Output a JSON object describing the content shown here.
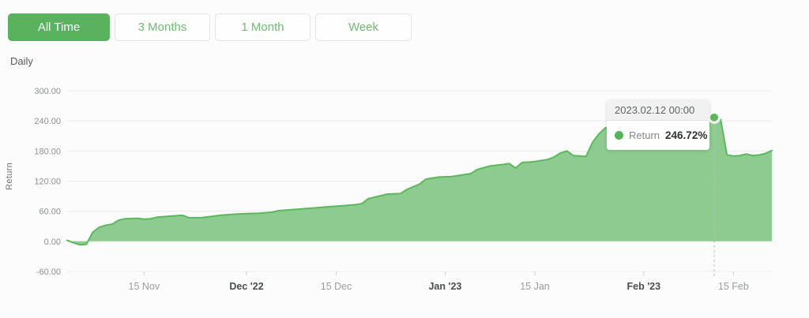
{
  "toolbar": {
    "buttons": [
      {
        "label": "All Time",
        "active": true
      },
      {
        "label": "3 Months",
        "active": false
      },
      {
        "label": "1 Month",
        "active": false
      },
      {
        "label": "Week",
        "active": false
      }
    ]
  },
  "granularity_label": "Daily",
  "tooltip": {
    "header": "2023.02.12 00:00",
    "series": "Return",
    "value": "246.72%",
    "dot_color": "#57b45b"
  },
  "chart_data": {
    "type": "area",
    "title": "",
    "xlabel": "",
    "ylabel": "Return",
    "ylim": [
      -60,
      300
    ],
    "x_range": [
      "2022-11-03",
      "2023-02-21"
    ],
    "grid": true,
    "grid_color": "#ececec",
    "legend_position": "none",
    "yticks": [
      {
        "value": 300,
        "label": "300.00"
      },
      {
        "value": 240,
        "label": "240.00"
      },
      {
        "value": 180,
        "label": "180.00"
      },
      {
        "value": 120,
        "label": "120.00"
      },
      {
        "value": 60,
        "label": "60.00"
      },
      {
        "value": 0,
        "label": "0.00"
      },
      {
        "value": -60,
        "label": "-60.00"
      }
    ],
    "xticks": [
      {
        "date": "2022-11-15",
        "label": "15 Nov",
        "bold": false
      },
      {
        "date": "2022-12-01",
        "label": "Dec '22",
        "bold": true
      },
      {
        "date": "2022-12-15",
        "label": "15 Dec",
        "bold": false
      },
      {
        "date": "2023-01-01",
        "label": "Jan '23",
        "bold": true
      },
      {
        "date": "2023-01-15",
        "label": "15 Jan",
        "bold": false
      },
      {
        "date": "2023-02-01",
        "label": "Feb '23",
        "bold": true
      },
      {
        "date": "2023-02-15",
        "label": "15 Feb",
        "bold": false
      }
    ],
    "marker": {
      "date": "2023-02-12",
      "value": 246.72,
      "series": "Return"
    },
    "series": [
      {
        "name": "Return",
        "color": "#5cb85c",
        "fill": "#8ecb90",
        "points": [
          [
            "2022-11-03",
            2
          ],
          [
            "2022-11-04",
            -3
          ],
          [
            "2022-11-05",
            -7
          ],
          [
            "2022-11-06",
            -6
          ],
          [
            "2022-11-07",
            18
          ],
          [
            "2022-11-08",
            28
          ],
          [
            "2022-11-09",
            32
          ],
          [
            "2022-11-10",
            34
          ],
          [
            "2022-11-11",
            42
          ],
          [
            "2022-11-12",
            45
          ],
          [
            "2022-11-14",
            46
          ],
          [
            "2022-11-15",
            44
          ],
          [
            "2022-11-16",
            45
          ],
          [
            "2022-11-17",
            48
          ],
          [
            "2022-11-19",
            50
          ],
          [
            "2022-11-21",
            52
          ],
          [
            "2022-11-22",
            47
          ],
          [
            "2022-11-24",
            47
          ],
          [
            "2022-11-25",
            49
          ],
          [
            "2022-11-27",
            52
          ],
          [
            "2022-11-29",
            54
          ],
          [
            "2022-12-01",
            55
          ],
          [
            "2022-12-03",
            56
          ],
          [
            "2022-12-05",
            58
          ],
          [
            "2022-12-06",
            61
          ],
          [
            "2022-12-08",
            63
          ],
          [
            "2022-12-10",
            65
          ],
          [
            "2022-12-12",
            67
          ],
          [
            "2022-12-14",
            69
          ],
          [
            "2022-12-16",
            71
          ],
          [
            "2022-12-18",
            73
          ],
          [
            "2022-12-19",
            75
          ],
          [
            "2022-12-20",
            85
          ],
          [
            "2022-12-22",
            91
          ],
          [
            "2022-12-23",
            94
          ],
          [
            "2022-12-25",
            95
          ],
          [
            "2022-12-26",
            103
          ],
          [
            "2022-12-28",
            114
          ],
          [
            "2022-12-29",
            124
          ],
          [
            "2022-12-31",
            128
          ],
          [
            "2023-01-02",
            129
          ],
          [
            "2023-01-03",
            131
          ],
          [
            "2023-01-05",
            135
          ],
          [
            "2023-01-06",
            143
          ],
          [
            "2023-01-08",
            150
          ],
          [
            "2023-01-10",
            153
          ],
          [
            "2023-01-11",
            155
          ],
          [
            "2023-01-12",
            146
          ],
          [
            "2023-01-13",
            157
          ],
          [
            "2023-01-15",
            159
          ],
          [
            "2023-01-17",
            163
          ],
          [
            "2023-01-18",
            168
          ],
          [
            "2023-01-19",
            176
          ],
          [
            "2023-01-20",
            180
          ],
          [
            "2023-01-21",
            171
          ],
          [
            "2023-01-23",
            169
          ],
          [
            "2023-01-24",
            197
          ],
          [
            "2023-01-25",
            214
          ],
          [
            "2023-01-26",
            226
          ],
          [
            "2023-01-28",
            230
          ],
          [
            "2023-01-30",
            232
          ],
          [
            "2023-02-01",
            231
          ],
          [
            "2023-02-03",
            234
          ],
          [
            "2023-02-05",
            233
          ],
          [
            "2023-02-07",
            236
          ],
          [
            "2023-02-09",
            234
          ],
          [
            "2023-02-11",
            240
          ],
          [
            "2023-02-12",
            246.72
          ],
          [
            "2023-02-13",
            243
          ],
          [
            "2023-02-14",
            172
          ],
          [
            "2023-02-15",
            170
          ],
          [
            "2023-02-16",
            171
          ],
          [
            "2023-02-17",
            174
          ],
          [
            "2023-02-18",
            171
          ],
          [
            "2023-02-19",
            172
          ],
          [
            "2023-02-20",
            175
          ],
          [
            "2023-02-21",
            181
          ]
        ]
      }
    ]
  }
}
